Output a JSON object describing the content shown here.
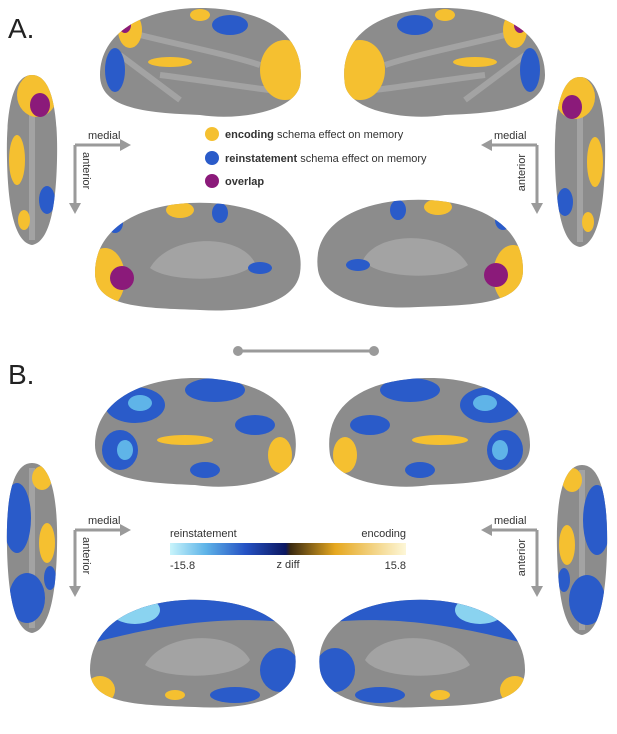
{
  "panels": [
    {
      "label": "A.",
      "orientation": [
        {
          "horizontal": "medial",
          "vertical": "anterior"
        },
        {
          "horizontal": "medial",
          "vertical": "anterior"
        }
      ],
      "legend": [
        {
          "term": "encoding",
          "text": "schema effect on memory"
        },
        {
          "term": "reinstatement",
          "text": "schema effect on memory"
        },
        {
          "term": "overlap"
        }
      ]
    },
    {
      "label": "B.",
      "orientation": [
        {
          "horizontal": "medial",
          "vertical": "anterior"
        },
        {
          "horizontal": "medial",
          "vertical": "anterior"
        }
      ],
      "colorbar": {
        "left_label": "reinstatement",
        "right_label": "encoding",
        "min": -15.8,
        "max": 15.8,
        "title": "z diff"
      }
    }
  ]
}
